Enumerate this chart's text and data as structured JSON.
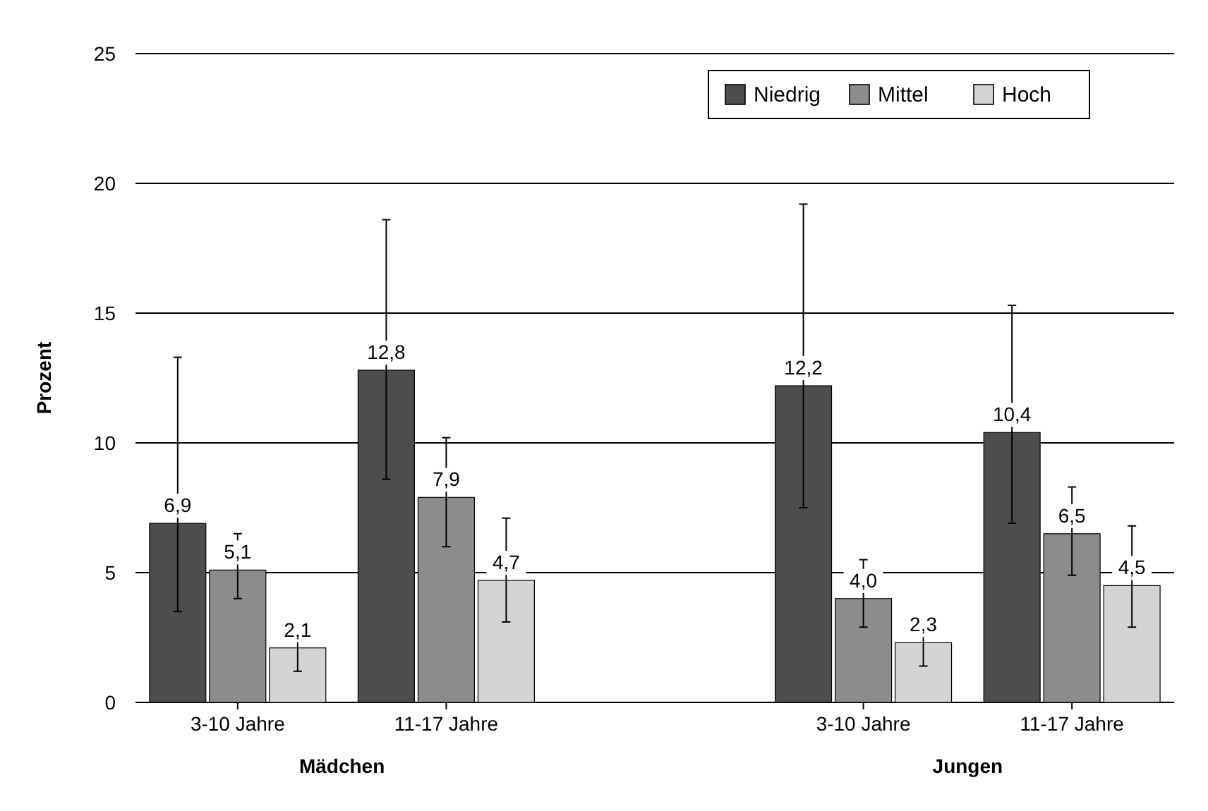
{
  "chart_data": {
    "type": "bar",
    "ylabel": "Prozent",
    "categories": [
      "3-10 Jahre",
      "11-17 Jahre",
      null,
      "3-10 Jahre",
      "11-17 Jahre"
    ],
    "series": [
      {
        "name": "Niedrig",
        "color": "#4d4d4d",
        "values": [
          6.9,
          12.8,
          null,
          12.2,
          10.4
        ],
        "errors": [
          [
            3.5,
            13.3
          ],
          [
            8.6,
            18.6
          ],
          null,
          [
            7.5,
            19.2
          ],
          [
            6.9,
            15.3
          ]
        ],
        "value_labels": [
          "6,9",
          "12,8",
          null,
          "12,2",
          "10,4"
        ]
      },
      {
        "name": "Mittel",
        "color": "#8c8c8c",
        "values": [
          5.1,
          7.9,
          null,
          4.0,
          6.5
        ],
        "errors": [
          [
            4.0,
            6.5
          ],
          [
            6.0,
            10.2
          ],
          null,
          [
            2.9,
            5.5
          ],
          [
            4.9,
            8.3
          ]
        ],
        "value_labels": [
          "5,1",
          "7,9",
          null,
          "4,0",
          "6,5"
        ]
      },
      {
        "name": "Hoch",
        "color": "#d4d4d4",
        "values": [
          2.1,
          4.7,
          null,
          2.3,
          4.5
        ],
        "errors": [
          [
            1.2,
            3.0
          ],
          [
            3.1,
            7.1
          ],
          null,
          [
            1.4,
            3.1
          ],
          [
            2.9,
            6.8
          ]
        ],
        "value_labels": [
          "2,1",
          "4,7",
          null,
          "2,3",
          "4,5"
        ]
      }
    ],
    "ylim": [
      0,
      25
    ],
    "yticks": [
      0,
      5,
      10,
      15,
      20,
      25
    ],
    "grid": "y",
    "legend": "top right",
    "annotations": [
      "Mädchen",
      "Jungen"
    ]
  }
}
